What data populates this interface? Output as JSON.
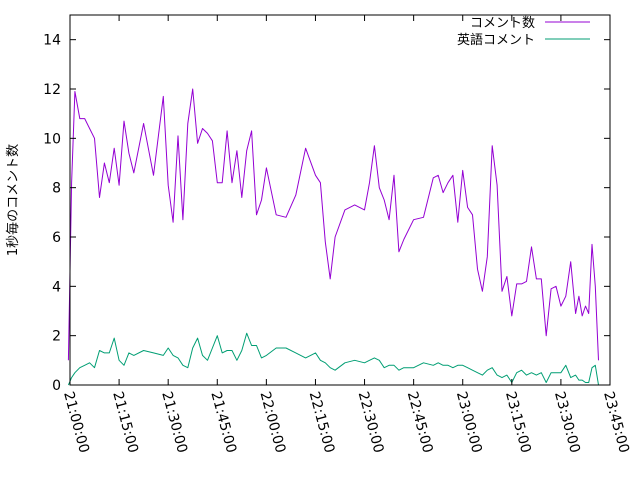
{
  "chart_data": {
    "type": "line",
    "ylabel": "1秒毎のコメント数",
    "xlabel": "",
    "ylim": [
      0,
      15
    ],
    "y_ticks": [
      "0",
      "2",
      "4",
      "6",
      "8",
      "10",
      "12",
      "14"
    ],
    "x_ticks": [
      "21:00:00",
      "21:15:00",
      "21:30:00",
      "21:45:00",
      "22:00:00",
      "22:15:00",
      "22:30:00",
      "22:45:00",
      "23:00:00",
      "23:15:00",
      "23:30:00",
      "23:45:00"
    ],
    "grid": false,
    "legend_position": "top-right",
    "x": [
      "20:59:30",
      "21:00:30",
      "21:01:30",
      "21:03:00",
      "21:04:30",
      "21:06:00",
      "21:07:30",
      "21:09:00",
      "21:10:30",
      "21:12:00",
      "21:13:30",
      "21:15:00",
      "21:16:30",
      "21:18:00",
      "21:19:30",
      "21:22:30",
      "21:25:30",
      "21:28:30",
      "21:30:00",
      "21:31:30",
      "21:33:00",
      "21:34:30",
      "21:36:00",
      "21:37:30",
      "21:39:00",
      "21:40:30",
      "21:42:00",
      "21:43:30",
      "21:45:00",
      "21:46:30",
      "21:48:00",
      "21:49:30",
      "21:51:00",
      "21:52:30",
      "21:54:00",
      "21:55:30",
      "21:57:00",
      "21:58:30",
      "22:00:00",
      "22:03:00",
      "22:06:00",
      "22:09:00",
      "22:12:00",
      "22:15:00",
      "22:16:30",
      "22:18:00",
      "22:19:30",
      "22:21:00",
      "22:24:00",
      "22:27:00",
      "22:30:00",
      "22:31:30",
      "22:33:00",
      "22:34:30",
      "22:36:00",
      "22:37:30",
      "22:39:00",
      "22:40:30",
      "22:42:00",
      "22:45:00",
      "22:48:00",
      "22:51:00",
      "22:52:30",
      "22:54:00",
      "22:55:30",
      "22:57:00",
      "22:58:30",
      "23:00:00",
      "23:01:30",
      "23:03:00",
      "23:04:30",
      "23:06:00",
      "23:07:30",
      "23:09:00",
      "23:10:30",
      "23:12:00",
      "23:13:30",
      "23:15:00",
      "23:16:30",
      "23:18:00",
      "23:19:30",
      "23:21:00",
      "23:22:30",
      "23:24:00",
      "23:25:30",
      "23:27:00",
      "23:28:30",
      "23:30:00",
      "23:31:30",
      "23:33:00"
    ],
    "series": [
      {
        "name": "コメント数",
        "color": "#9400d3",
        "values": [
          1.0,
          8.2,
          11.9,
          10.8,
          10.8,
          10.4,
          10.0,
          7.6,
          9.0,
          8.2,
          9.6,
          8.1,
          10.7,
          9.4,
          8.6,
          10.6,
          8.5,
          11.7,
          8.1,
          6.6,
          10.1,
          6.7,
          10.6,
          12.0,
          9.8,
          10.4,
          10.2,
          9.9,
          8.2,
          8.2,
          10.3,
          8.2,
          9.5,
          7.6,
          9.5,
          10.3,
          6.9,
          7.5,
          8.8,
          6.9,
          6.8,
          7.7,
          9.6,
          8.5,
          8.2,
          5.8,
          4.3,
          6.0,
          7.1,
          7.3,
          7.1,
          8.2,
          9.7,
          8.0,
          7.5,
          6.7,
          8.5,
          5.4,
          5.9,
          6.7,
          6.8,
          8.4,
          8.5,
          7.8,
          8.2,
          8.5,
          6.6,
          8.7,
          7.2,
          6.9,
          4.7,
          3.8,
          5.2,
          9.7,
          8.1,
          3.8,
          4.4,
          2.8,
          4.1,
          4.1,
          4.2,
          5.6,
          4.3,
          4.3,
          2.0,
          3.9,
          4.0,
          3.2,
          3.6,
          5.0
        ],
        "continued_values": [
          2.9,
          3.6,
          2.8,
          3.2,
          2.9,
          5.7,
          4.0,
          1.0
        ]
      },
      {
        "name": "英語コメント",
        "color": "#009e73",
        "values": [
          0.0,
          0.3,
          0.5,
          0.7,
          0.8,
          0.9,
          0.7,
          1.4,
          1.3,
          1.3,
          1.9,
          1.0,
          0.8,
          1.3,
          1.2,
          1.4,
          1.3,
          1.2,
          1.5,
          1.2,
          1.1,
          0.8,
          0.7,
          1.5,
          1.9,
          1.2,
          1.0,
          1.5,
          2.0,
          1.3,
          1.4,
          1.4,
          1.0,
          1.4,
          2.1,
          1.6,
          1.6,
          1.1,
          1.2,
          1.5,
          1.5,
          1.3,
          1.1,
          1.3,
          1.0,
          0.9,
          0.7,
          0.6,
          0.9,
          1.0,
          0.9,
          1.0,
          1.1,
          1.0,
          0.7,
          0.8,
          0.8,
          0.6,
          0.7,
          0.7,
          0.9,
          0.8,
          0.9,
          0.8,
          0.8,
          0.7,
          0.8,
          0.8,
          0.7,
          0.6,
          0.5,
          0.4,
          0.6,
          0.7,
          0.4,
          0.3,
          0.4,
          0.1,
          0.5,
          0.6,
          0.4,
          0.5,
          0.4,
          0.5,
          0.1,
          0.5,
          0.5,
          0.5,
          0.8,
          0.3
        ],
        "continued_values": [
          0.4,
          0.2,
          0.2,
          0.1,
          0.1,
          0.7,
          0.8,
          0.0
        ]
      }
    ]
  }
}
